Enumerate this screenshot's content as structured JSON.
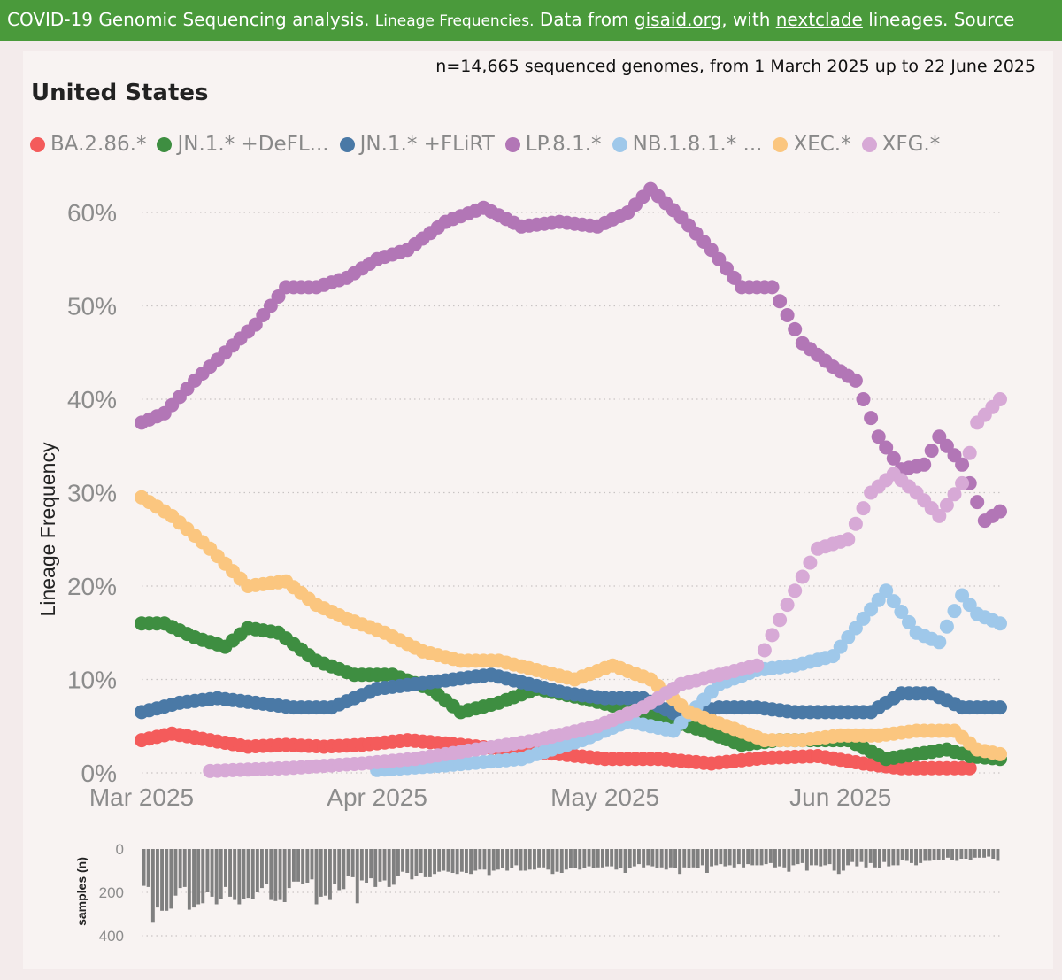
{
  "banner": {
    "title": "COVID-19 Genomic Sequencing analysis.",
    "subtitle": "Lineage Frequencies.",
    "data_from": "Data from",
    "gisaid": "gisaid.org",
    "with": ", with",
    "nextclade": "nextclade",
    "tail": "lineages. Source"
  },
  "header": {
    "sample_info": "n=14,665 sequenced genomes, from 1 March 2025 up to 22 June 2025",
    "country": "United States"
  },
  "colors": {
    "BA.2.86": "#f45b5b",
    "JN.1.DeFLiRT": "#3e8e41",
    "JN.1.FLiRT": "#4a79a6",
    "LP.8.1": "#b276b6",
    "NB.1.8.1": "#9fc8ea",
    "XEC": "#fbc67f",
    "XFG": "#d7a9d6",
    "samples_bar": "#808080"
  },
  "legend": [
    {
      "label": "BA.2.86.*",
      "color": "#f45b5b"
    },
    {
      "label": "JN.1.* +DeFL...",
      "color": "#3e8e41"
    },
    {
      "label": "JN.1.* +FLiRT",
      "color": "#4a79a6"
    },
    {
      "label": "LP.8.1.*",
      "color": "#b276b6"
    },
    {
      "label": "NB.1.8.1.* ...",
      "color": "#9fc8ea"
    },
    {
      "label": "XEC.*",
      "color": "#fbc67f"
    },
    {
      "label": "XFG.*",
      "color": "#d7a9d6"
    }
  ],
  "chart_data": [
    {
      "type": "scatter",
      "ylabel": "Lineage Frequency",
      "ylim": [
        0,
        63
      ],
      "y_unit": "%",
      "y_ticks": [
        "0%",
        "10%",
        "20%",
        "30%",
        "40%",
        "50%",
        "60%"
      ],
      "x_range": [
        "2025-03-01",
        "2025-06-22"
      ],
      "x_ticks": [
        "Mar 2025",
        "Apr 2025",
        "May 2025",
        "Jun 2025"
      ],
      "grid": "horizontal dotted",
      "legend_position": "top",
      "series": [
        {
          "name": "BA.2.86.*",
          "color": "#f45b5b",
          "x": [
            "2025-03-01",
            "2025-03-05",
            "2025-03-10",
            "2025-03-15",
            "2025-03-20",
            "2025-03-25",
            "2025-03-30",
            "2025-04-05",
            "2025-04-12",
            "2025-04-18",
            "2025-04-25",
            "2025-05-01",
            "2025-05-08",
            "2025-05-15",
            "2025-05-22",
            "2025-05-29",
            "2025-06-04",
            "2025-06-09",
            "2025-06-14",
            "2025-06-18"
          ],
          "y": [
            3.5,
            4.2,
            3.5,
            2.8,
            3.0,
            2.8,
            3.0,
            3.5,
            3.0,
            2.5,
            2.0,
            1.5,
            1.5,
            1.0,
            1.6,
            1.8,
            1.0,
            0.5,
            0.5,
            0.5
          ]
        },
        {
          "name": "JN.1.* +DeFLiRT",
          "color": "#3e8e41",
          "x": [
            "2025-03-01",
            "2025-03-04",
            "2025-03-08",
            "2025-03-12",
            "2025-03-15",
            "2025-03-19",
            "2025-03-24",
            "2025-03-29",
            "2025-04-03",
            "2025-04-08",
            "2025-04-12",
            "2025-04-17",
            "2025-04-22",
            "2025-04-28",
            "2025-05-03",
            "2025-05-08",
            "2025-05-14",
            "2025-05-19",
            "2025-05-24",
            "2025-05-28",
            "2025-06-02",
            "2025-06-07",
            "2025-06-11",
            "2025-06-15",
            "2025-06-18",
            "2025-06-22"
          ],
          "y": [
            16.0,
            16.0,
            14.5,
            13.5,
            15.5,
            15.0,
            12.0,
            10.5,
            10.5,
            9.0,
            6.5,
            7.5,
            9.0,
            8.0,
            7.0,
            6.0,
            4.5,
            3.0,
            3.5,
            3.5,
            3.5,
            1.5,
            2.0,
            2.5,
            1.8,
            1.5
          ]
        },
        {
          "name": "JN.1.* +FLiRT",
          "color": "#4a79a6",
          "x": [
            "2025-03-01",
            "2025-03-06",
            "2025-03-11",
            "2025-03-16",
            "2025-03-21",
            "2025-03-26",
            "2025-04-01",
            "2025-04-06",
            "2025-04-11",
            "2025-04-16",
            "2025-04-21",
            "2025-04-26",
            "2025-05-01",
            "2025-05-06",
            "2025-05-11",
            "2025-05-16",
            "2025-05-21",
            "2025-05-26",
            "2025-05-31",
            "2025-06-05",
            "2025-06-09",
            "2025-06-13",
            "2025-06-17",
            "2025-06-22"
          ],
          "y": [
            6.5,
            7.5,
            8.0,
            7.5,
            7.0,
            7.0,
            9.0,
            9.5,
            10.0,
            10.5,
            9.5,
            8.5,
            8.0,
            8.0,
            6.0,
            7.0,
            7.0,
            6.5,
            6.5,
            6.5,
            8.5,
            8.5,
            7.0,
            7.0
          ]
        },
        {
          "name": "LP.8.1.*",
          "color": "#b276b6",
          "x": [
            "2025-03-01",
            "2025-03-04",
            "2025-03-08",
            "2025-03-12",
            "2025-03-16",
            "2025-03-20",
            "2025-03-24",
            "2025-03-28",
            "2025-04-01",
            "2025-04-05",
            "2025-04-10",
            "2025-04-15",
            "2025-04-20",
            "2025-04-25",
            "2025-04-30",
            "2025-05-04",
            "2025-05-07",
            "2025-05-11",
            "2025-05-15",
            "2025-05-19",
            "2025-05-23",
            "2025-05-27",
            "2025-05-31",
            "2025-06-03",
            "2025-06-06",
            "2025-06-09",
            "2025-06-12",
            "2025-06-14",
            "2025-06-17",
            "2025-06-20",
            "2025-06-22"
          ],
          "y": [
            37.5,
            38.5,
            42,
            45,
            48,
            52,
            52,
            53,
            55,
            56,
            59,
            60.5,
            58.5,
            59,
            58.5,
            60,
            62.5,
            59.5,
            56,
            52,
            52,
            46,
            43.5,
            42,
            36,
            32.5,
            33,
            36,
            33,
            27,
            28
          ]
        },
        {
          "name": "NB.1.8.1.*",
          "color": "#9fc8ea",
          "x": [
            "2025-04-01",
            "2025-04-10",
            "2025-04-20",
            "2025-04-28",
            "2025-05-04",
            "2025-05-10",
            "2025-05-16",
            "2025-05-21",
            "2025-05-26",
            "2025-05-31",
            "2025-06-04",
            "2025-06-07",
            "2025-06-11",
            "2025-06-14",
            "2025-06-17",
            "2025-06-19",
            "2025-06-22"
          ],
          "y": [
            0.3,
            0.8,
            1.5,
            3.5,
            5.5,
            4.5,
            9.5,
            11.0,
            11.5,
            12.5,
            16.5,
            19.5,
            15.0,
            14.0,
            19.0,
            17.0,
            16.0
          ]
        },
        {
          "name": "XEC.*",
          "color": "#fbc67f",
          "x": [
            "2025-03-01",
            "2025-03-05",
            "2025-03-10",
            "2025-03-15",
            "2025-03-20",
            "2025-03-24",
            "2025-03-28",
            "2025-04-02",
            "2025-04-07",
            "2025-04-12",
            "2025-04-17",
            "2025-04-22",
            "2025-04-27",
            "2025-05-02",
            "2025-05-07",
            "2025-05-12",
            "2025-05-17",
            "2025-05-22",
            "2025-05-27",
            "2025-06-01",
            "2025-06-06",
            "2025-06-11",
            "2025-06-16",
            "2025-06-19",
            "2025-06-22"
          ],
          "y": [
            29.5,
            27.5,
            24.0,
            20.0,
            20.5,
            18.0,
            16.5,
            15.0,
            13.0,
            12.0,
            12.0,
            11.0,
            10.0,
            11.5,
            10.0,
            6.5,
            5.0,
            3.5,
            3.5,
            4.0,
            4.0,
            4.5,
            4.5,
            2.5,
            2.0
          ]
        },
        {
          "name": "XFG.*",
          "color": "#d7a9d6",
          "x": [
            "2025-03-10",
            "2025-03-20",
            "2025-03-30",
            "2025-04-06",
            "2025-04-14",
            "2025-04-22",
            "2025-04-30",
            "2025-05-06",
            "2025-05-11",
            "2025-05-16",
            "2025-05-21",
            "2025-05-25",
            "2025-05-29",
            "2025-06-02",
            "2025-06-05",
            "2025-06-08",
            "2025-06-11",
            "2025-06-14",
            "2025-06-17",
            "2025-06-19",
            "2025-06-22"
          ],
          "y": [
            0.2,
            0.5,
            1.0,
            1.5,
            2.5,
            3.5,
            5.0,
            7.0,
            9.5,
            10.5,
            11.5,
            18.0,
            24.0,
            25.0,
            30.0,
            32.0,
            30.0,
            27.5,
            31.0,
            37.5,
            40.0
          ]
        }
      ]
    },
    {
      "type": "bar",
      "ylabel": "samples (n)",
      "y_ticks": [
        "0",
        "200",
        "400"
      ],
      "ylim": [
        0,
        400
      ],
      "y_inverted": true,
      "color": "#808080",
      "values": [
        170,
        175,
        340,
        270,
        285,
        285,
        275,
        215,
        180,
        175,
        280,
        270,
        255,
        250,
        200,
        220,
        255,
        230,
        175,
        220,
        235,
        255,
        230,
        225,
        230,
        200,
        180,
        160,
        235,
        240,
        235,
        245,
        180,
        150,
        150,
        160,
        155,
        140,
        255,
        220,
        215,
        235,
        160,
        190,
        185,
        125,
        130,
        250,
        145,
        155,
        135,
        175,
        150,
        145,
        175,
        165,
        125,
        105,
        110,
        140,
        125,
        110,
        130,
        130,
        115,
        105,
        100,
        105,
        110,
        115,
        105,
        110,
        115,
        100,
        95,
        95,
        120,
        100,
        95,
        90,
        100,
        90,
        75,
        100,
        100,
        95,
        95,
        85,
        85,
        95,
        115,
        105,
        110,
        95,
        90,
        90,
        95,
        90,
        80,
        90,
        85,
        85,
        80,
        80,
        95,
        90,
        110,
        90,
        80,
        70,
        85,
        75,
        80,
        90,
        85,
        95,
        85,
        90,
        115,
        85,
        90,
        85,
        90,
        75,
        110,
        80,
        75,
        70,
        80,
        75,
        85,
        70,
        85,
        70,
        75,
        75,
        75,
        70,
        65,
        85,
        80,
        85,
        105,
        75,
        70,
        65,
        100,
        75,
        75,
        80,
        75,
        70,
        100,
        115,
        100,
        75,
        60,
        80,
        60,
        85,
        65,
        85,
        90,
        60,
        80,
        75,
        75,
        50,
        55,
        65,
        75,
        65,
        55,
        55,
        50,
        50,
        50,
        40,
        50,
        55,
        45,
        45,
        50,
        40,
        40,
        40,
        35,
        45,
        55
      ]
    }
  ]
}
